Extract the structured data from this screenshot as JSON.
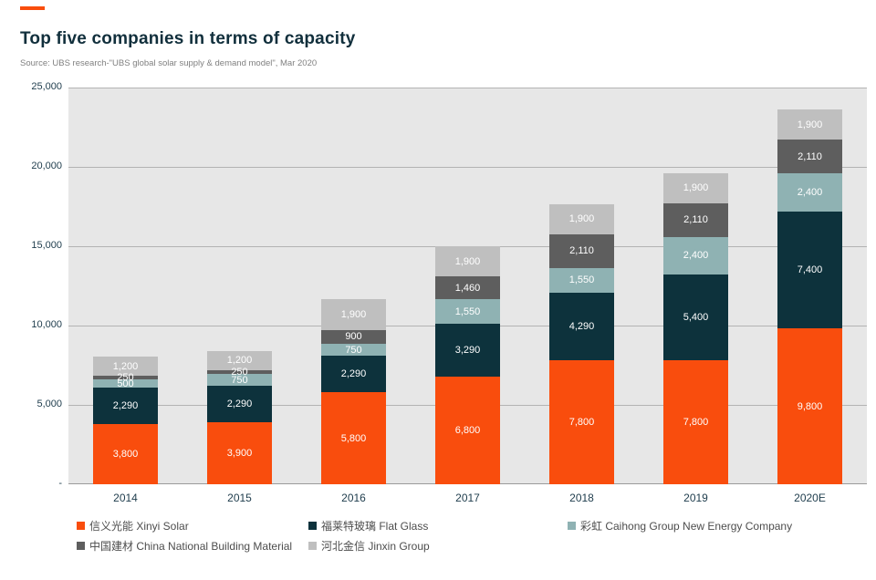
{
  "page": {
    "title": "Top five companies in terms of capacity",
    "source": "Source: UBS research-\"UBS global solar supply & demand model\", Mar 2020",
    "accent_color": "#F94D0D",
    "title_color": "#112f3c",
    "axis_text_color": "#1e3c4c",
    "plot_background": "#e7e7e7",
    "gridline_color": "#b3b3b3"
  },
  "chart_data": {
    "type": "bar",
    "stacked": true,
    "title": "Top five companies in terms of capacity",
    "xlabel": "",
    "ylabel": "",
    "ylim": [
      0,
      25000
    ],
    "grid": true,
    "legend_position": "bottom",
    "categories": [
      "2014",
      "2015",
      "2016",
      "2017",
      "2018",
      "2019",
      "2020E"
    ],
    "series": [
      {
        "name": "信义光能 Xinyi Solar",
        "color": "#F94D0D",
        "values": [
          3800,
          3900,
          5800,
          6800,
          7800,
          7800,
          9800
        ]
      },
      {
        "name": "福莱特玻璃 Flat Glass",
        "color": "#0D323C",
        "values": [
          2290,
          2290,
          2290,
          3290,
          4290,
          5400,
          7400
        ]
      },
      {
        "name": "彩虹 Caihong Group New Energy Company",
        "color": "#8FB2B3",
        "values": [
          500,
          750,
          750,
          1550,
          1550,
          2400,
          2400
        ]
      },
      {
        "name": "中国建材 China National Building Material",
        "color": "#5E5E5E",
        "values": [
          250,
          250,
          900,
          1460,
          2110,
          2110,
          2110
        ]
      },
      {
        "name": "河北金信 Jinxin Group",
        "color": "#BFBFBF",
        "values": [
          1200,
          1200,
          1900,
          1900,
          1900,
          1900,
          1900
        ]
      }
    ],
    "y_ticks": [
      {
        "value": 25000,
        "label": "25,000"
      },
      {
        "value": 20000,
        "label": "20,000"
      },
      {
        "value": 15000,
        "label": "15,000"
      },
      {
        "value": 10000,
        "label": "10,000"
      },
      {
        "value": 5000,
        "label": "5,000"
      },
      {
        "value": 0,
        "label": "-"
      }
    ]
  }
}
